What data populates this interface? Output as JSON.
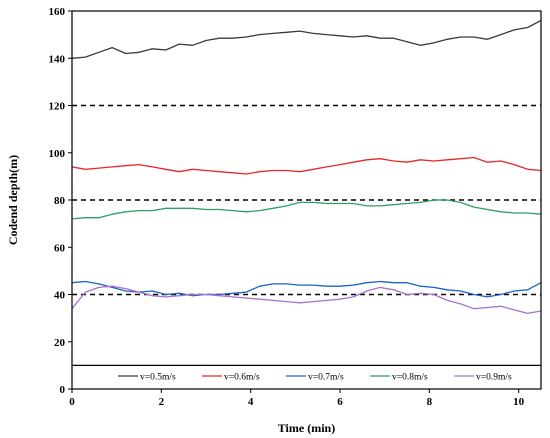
{
  "chart_data": {
    "type": "line",
    "title": "",
    "xlabel": "Time (min)",
    "ylabel": "Codend depth(m)",
    "xlim": [
      0,
      10.5
    ],
    "ylim": [
      0,
      160
    ],
    "xticks": [
      0,
      2,
      4,
      6,
      8,
      10
    ],
    "yticks": [
      0,
      20,
      40,
      60,
      80,
      100,
      120,
      140,
      160
    ],
    "xtick_labels": [
      "0",
      "2",
      "4",
      "6",
      "8",
      "10"
    ],
    "ytick_labels": [
      "0",
      "20",
      "40",
      "60",
      "80",
      "100",
      "120",
      "140",
      "160"
    ],
    "grid": false,
    "reference_lines": [
      {
        "y": 120,
        "style": "dashed",
        "color": "#000000"
      },
      {
        "y": 80,
        "style": "dashed",
        "color": "#000000"
      },
      {
        "y": 40,
        "style": "dashed",
        "color": "#000000"
      }
    ],
    "legend_placement": "bottom-inside",
    "legend_divider_y": 10,
    "series": [
      {
        "name": "v=0.5m/s",
        "color": "#3a3a3a",
        "points": [
          [
            0,
            140
          ],
          [
            0.3,
            140.5
          ],
          [
            0.6,
            142.5
          ],
          [
            0.9,
            144.5
          ],
          [
            1.2,
            142
          ],
          [
            1.5,
            142.5
          ],
          [
            1.8,
            144
          ],
          [
            2.1,
            143.5
          ],
          [
            2.4,
            146
          ],
          [
            2.7,
            145.5
          ],
          [
            3.0,
            147.5
          ],
          [
            3.3,
            148.5
          ],
          [
            3.6,
            148.5
          ],
          [
            3.9,
            149
          ],
          [
            4.2,
            150
          ],
          [
            4.5,
            150.5
          ],
          [
            4.8,
            151
          ],
          [
            5.1,
            151.5
          ],
          [
            5.4,
            150.5
          ],
          [
            5.7,
            150
          ],
          [
            6.0,
            149.5
          ],
          [
            6.3,
            149
          ],
          [
            6.6,
            149.5
          ],
          [
            6.9,
            148.5
          ],
          [
            7.2,
            148.5
          ],
          [
            7.5,
            147
          ],
          [
            7.8,
            145.5
          ],
          [
            8.1,
            146.5
          ],
          [
            8.4,
            148
          ],
          [
            8.7,
            149
          ],
          [
            9.0,
            149
          ],
          [
            9.3,
            148
          ],
          [
            9.6,
            150
          ],
          [
            9.9,
            152
          ],
          [
            10.2,
            153
          ],
          [
            10.5,
            156
          ]
        ]
      },
      {
        "name": "v=0.6m/s",
        "color": "#e8272a",
        "points": [
          [
            0,
            94
          ],
          [
            0.3,
            93
          ],
          [
            0.6,
            93.5
          ],
          [
            0.9,
            94
          ],
          [
            1.2,
            94.5
          ],
          [
            1.5,
            95
          ],
          [
            1.8,
            94
          ],
          [
            2.1,
            93
          ],
          [
            2.4,
            92
          ],
          [
            2.7,
            93
          ],
          [
            3.0,
            92.5
          ],
          [
            3.3,
            92
          ],
          [
            3.6,
            91.5
          ],
          [
            3.9,
            91
          ],
          [
            4.2,
            92
          ],
          [
            4.5,
            92.5
          ],
          [
            4.8,
            92.5
          ],
          [
            5.1,
            92
          ],
          [
            5.4,
            93
          ],
          [
            5.7,
            94
          ],
          [
            6.0,
            95
          ],
          [
            6.3,
            96
          ],
          [
            6.6,
            97
          ],
          [
            6.9,
            97.5
          ],
          [
            7.2,
            96.5
          ],
          [
            7.5,
            96
          ],
          [
            7.8,
            97
          ],
          [
            8.1,
            96.5
          ],
          [
            8.4,
            97
          ],
          [
            8.7,
            97.5
          ],
          [
            9.0,
            98
          ],
          [
            9.3,
            96
          ],
          [
            9.6,
            96.5
          ],
          [
            9.9,
            95
          ],
          [
            10.2,
            93
          ],
          [
            10.5,
            92.5
          ]
        ]
      },
      {
        "name": "v=0.7m/s",
        "color": "#1a63c6",
        "points": [
          [
            0,
            45
          ],
          [
            0.3,
            45.5
          ],
          [
            0.6,
            44.5
          ],
          [
            0.9,
            43
          ],
          [
            1.2,
            41.5
          ],
          [
            1.5,
            41
          ],
          [
            1.8,
            41.5
          ],
          [
            2.1,
            40
          ],
          [
            2.4,
            40.5
          ],
          [
            2.7,
            39.5
          ],
          [
            3.0,
            40
          ],
          [
            3.3,
            40
          ],
          [
            3.6,
            40.5
          ],
          [
            3.9,
            41
          ],
          [
            4.2,
            43.5
          ],
          [
            4.5,
            44.5
          ],
          [
            4.8,
            44.5
          ],
          [
            5.1,
            44
          ],
          [
            5.4,
            44
          ],
          [
            5.7,
            43.5
          ],
          [
            6.0,
            43.5
          ],
          [
            6.3,
            44
          ],
          [
            6.6,
            45
          ],
          [
            6.9,
            45.5
          ],
          [
            7.2,
            45
          ],
          [
            7.5,
            45
          ],
          [
            7.8,
            43.5
          ],
          [
            8.1,
            43
          ],
          [
            8.4,
            42
          ],
          [
            8.7,
            41.5
          ],
          [
            9.0,
            40
          ],
          [
            9.3,
            39
          ],
          [
            9.6,
            40
          ],
          [
            9.9,
            41.5
          ],
          [
            10.2,
            42
          ],
          [
            10.5,
            45
          ]
        ]
      },
      {
        "name": "v=0.8m/s",
        "color": "#2e9e62",
        "points": [
          [
            0,
            72
          ],
          [
            0.3,
            72.5
          ],
          [
            0.6,
            72.5
          ],
          [
            0.9,
            74
          ],
          [
            1.2,
            75
          ],
          [
            1.5,
            75.5
          ],
          [
            1.8,
            75.5
          ],
          [
            2.1,
            76.5
          ],
          [
            2.4,
            76.5
          ],
          [
            2.7,
            76.5
          ],
          [
            3.0,
            76
          ],
          [
            3.3,
            76
          ],
          [
            3.6,
            75.5
          ],
          [
            3.9,
            75
          ],
          [
            4.2,
            75.5
          ],
          [
            4.5,
            76.5
          ],
          [
            4.8,
            77.5
          ],
          [
            5.1,
            79
          ],
          [
            5.4,
            79
          ],
          [
            5.7,
            78.5
          ],
          [
            6.0,
            78.5
          ],
          [
            6.3,
            78.5
          ],
          [
            6.6,
            77.5
          ],
          [
            6.9,
            77.5
          ],
          [
            7.2,
            78
          ],
          [
            7.5,
            78.5
          ],
          [
            7.8,
            79
          ],
          [
            8.1,
            80
          ],
          [
            8.4,
            80
          ],
          [
            8.7,
            79
          ],
          [
            9.0,
            77
          ],
          [
            9.3,
            76
          ],
          [
            9.6,
            75
          ],
          [
            9.9,
            74.5
          ],
          [
            10.2,
            74.5
          ],
          [
            10.5,
            74
          ]
        ]
      },
      {
        "name": "v=0.9m/s",
        "color": "#a970cf",
        "points": [
          [
            0,
            34
          ],
          [
            0.3,
            41
          ],
          [
            0.6,
            43
          ],
          [
            0.9,
            43.5
          ],
          [
            1.2,
            42.5
          ],
          [
            1.5,
            41
          ],
          [
            1.8,
            39.5
          ],
          [
            2.1,
            39
          ],
          [
            2.4,
            39.5
          ],
          [
            2.7,
            40
          ],
          [
            3.0,
            40
          ],
          [
            3.3,
            39.5
          ],
          [
            3.6,
            39
          ],
          [
            3.9,
            38.5
          ],
          [
            4.2,
            38
          ],
          [
            4.5,
            37.5
          ],
          [
            4.8,
            37
          ],
          [
            5.1,
            36.5
          ],
          [
            5.4,
            37
          ],
          [
            5.7,
            37.5
          ],
          [
            6.0,
            38
          ],
          [
            6.3,
            39
          ],
          [
            6.6,
            41.5
          ],
          [
            6.9,
            43
          ],
          [
            7.2,
            42
          ],
          [
            7.5,
            40
          ],
          [
            7.8,
            40.5
          ],
          [
            8.1,
            40
          ],
          [
            8.4,
            37.5
          ],
          [
            8.7,
            36
          ],
          [
            9.0,
            34
          ],
          [
            9.3,
            34.5
          ],
          [
            9.6,
            35
          ],
          [
            9.9,
            33.5
          ],
          [
            10.2,
            32
          ],
          [
            10.5,
            33
          ]
        ]
      }
    ]
  }
}
